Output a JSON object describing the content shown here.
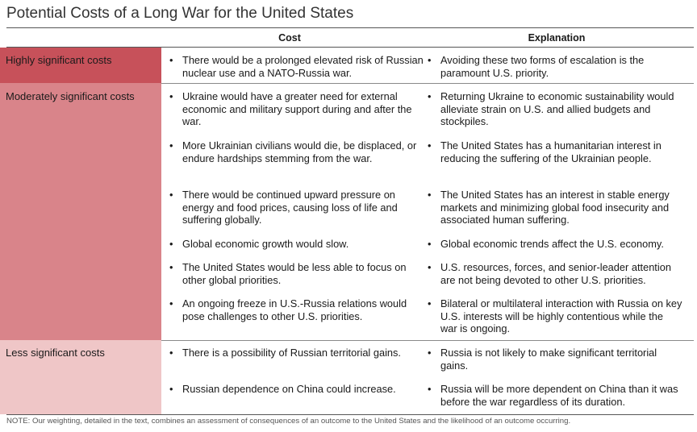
{
  "title": "Potential Costs of a Long War for the United States",
  "headers": {
    "cost": "Cost",
    "explanation": "Explanation"
  },
  "categories": [
    {
      "label": "Highly significant costs",
      "color": "#c7515a"
    },
    {
      "label": "Moderately significant costs",
      "color": "#d9848a"
    },
    {
      "label": "Less significant costs",
      "color": "#efc6c7"
    }
  ],
  "rows": [
    {
      "cost": "There would be a prolonged elevated risk of Russian nuclear use and a NATO-Russia war.",
      "explanation": "Avoiding these two forms of escalation is the paramount U.S. priority."
    },
    {
      "cost": "Ukraine would have a greater need for external economic and military support during and after the war.",
      "explanation": "Returning Ukraine to economic sustainability would alleviate strain on U.S. and allied budgets and stockpiles."
    },
    {
      "cost": "More Ukrainian civilians would die, be displaced, or endure hardships stemming from the war.",
      "explanation": "The United States has a humanitarian interest in reducing the suffering of the Ukrainian people."
    },
    {
      "cost": "There would be continued upward pressure on energy and food prices, causing loss of life and suffering globally.",
      "explanation": "The United States has an interest in stable energy markets and minimizing global food insecurity and associated human suffering."
    },
    {
      "cost": "Global economic growth would slow.",
      "explanation": "Global economic trends affect the U.S. economy."
    },
    {
      "cost": "The United States would be less able to focus on other global priorities.",
      "explanation": "U.S. resources, forces, and senior-leader attention are not being devoted to other U.S. priorities."
    },
    {
      "cost": "An ongoing freeze in U.S.-Russia relations would pose challenges to other U.S. priorities.",
      "explanation": "Bilateral or multilateral interaction with Russia on key U.S. interests will be highly contentious while the war is ongoing."
    },
    {
      "cost": "There is a possibility of Russian territorial gains.",
      "explanation": "Russia is not likely to make significant territorial gains."
    },
    {
      "cost": "Russian dependence on China could increase.",
      "explanation": "Russia will be more dependent on China than it was before the war regardless of its duration."
    }
  ],
  "note": "NOTE: Our weighting, detailed in the text, combines an assessment of consequences of an outcome to the United States and the likelihood of an outcome occurring."
}
